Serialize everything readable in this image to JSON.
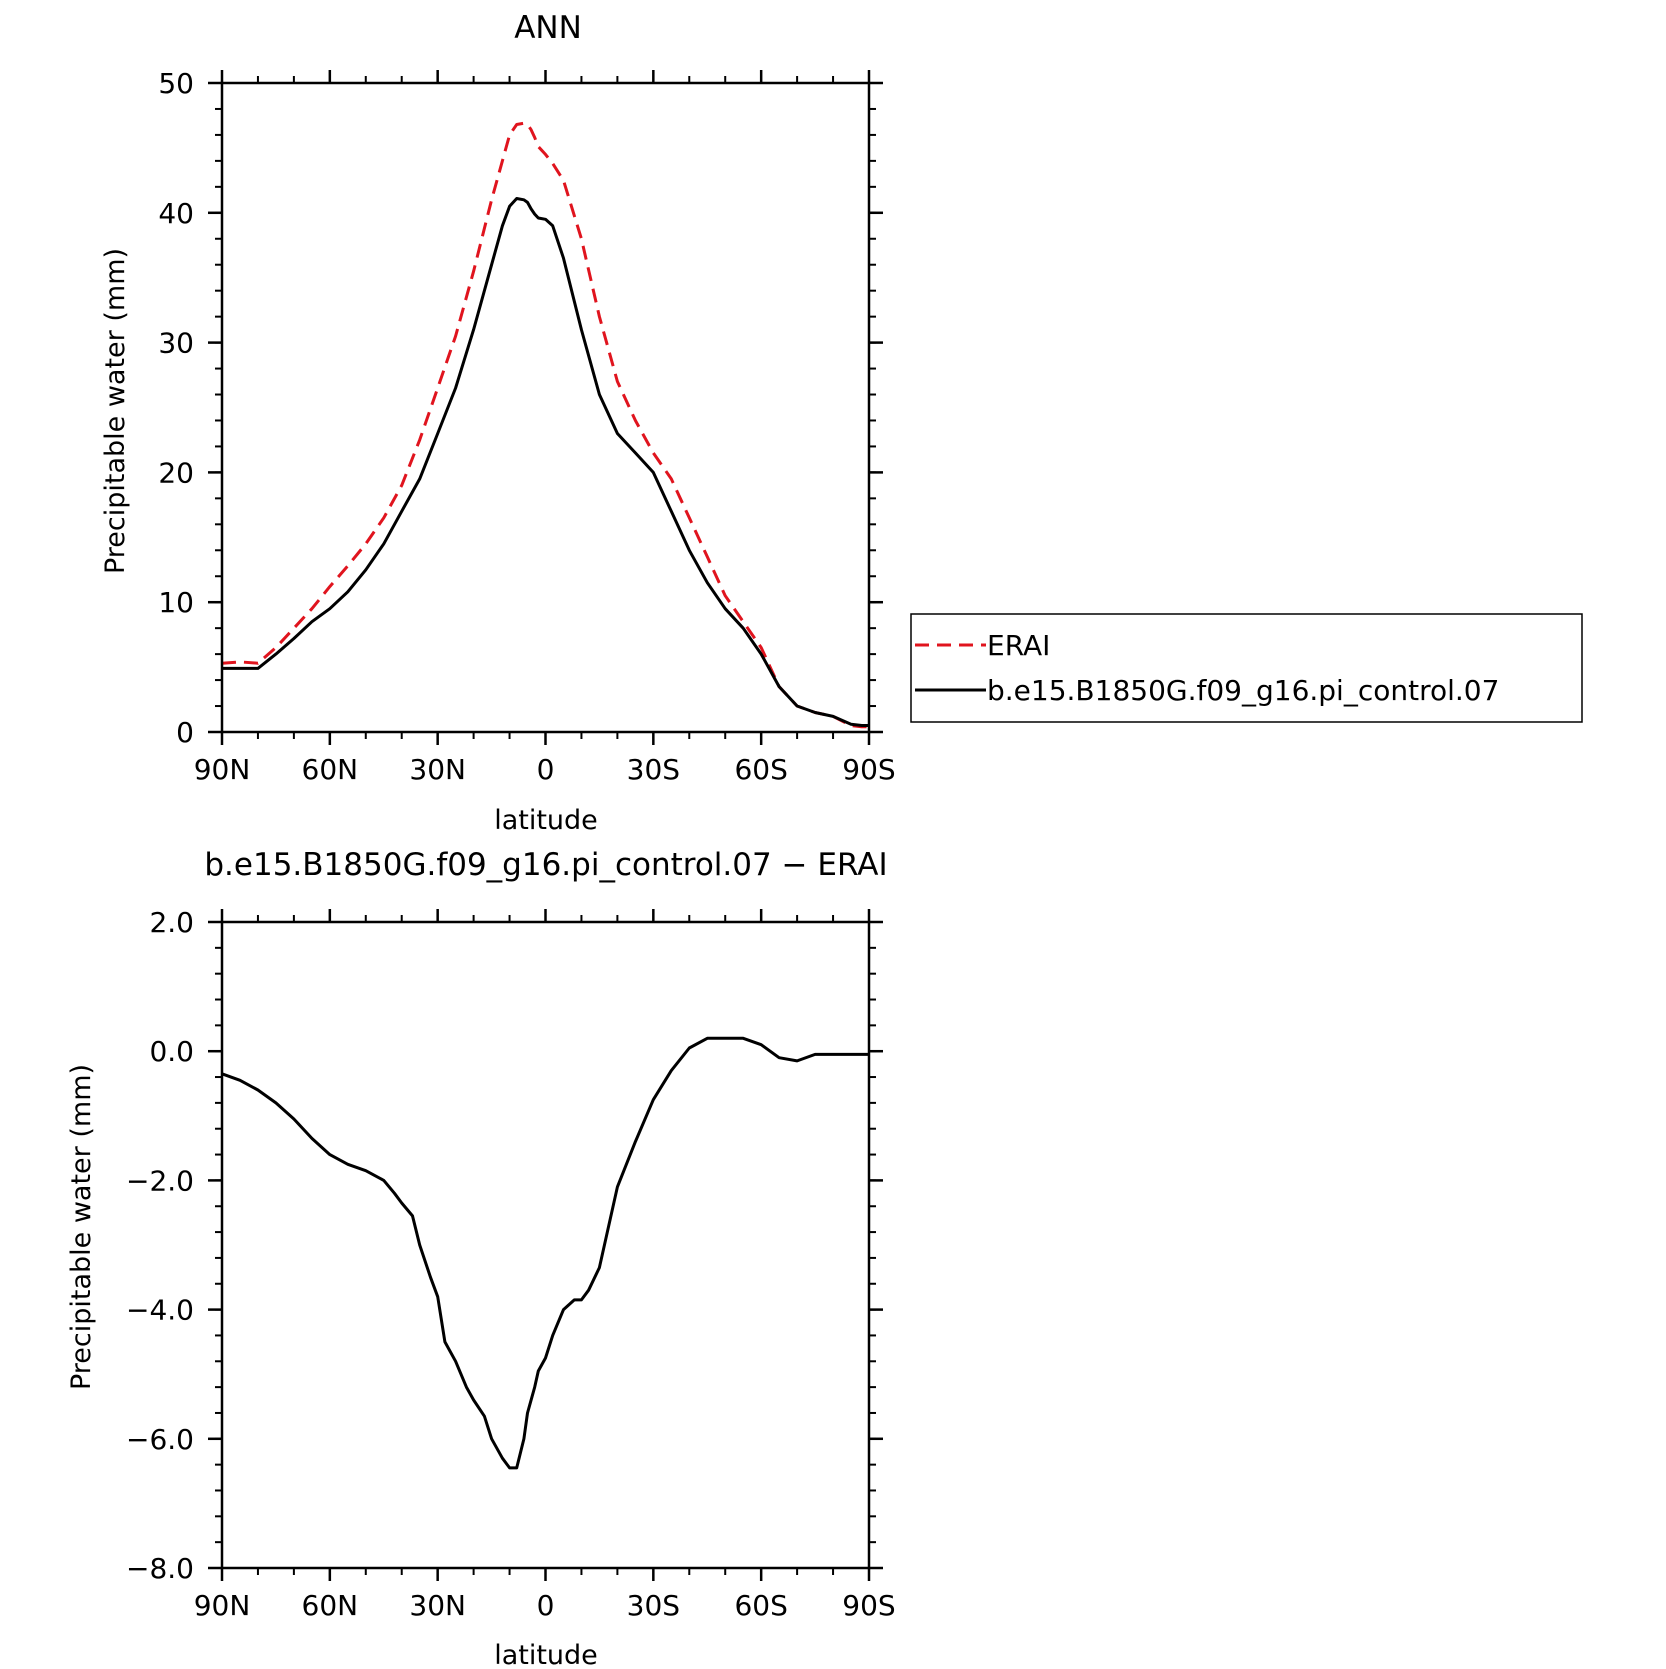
{
  "colors": {
    "erai": "#e0141e",
    "model": "#000000",
    "axis": "#000000",
    "background": "#ffffff"
  },
  "chart_data": [
    {
      "type": "line",
      "title": "ANN",
      "xlabel": "latitude",
      "ylabel": "Precipitable water (mm)",
      "xlim": [
        90,
        -90
      ],
      "ylim": [
        0,
        50
      ],
      "xticks": [
        90,
        60,
        30,
        0,
        -30,
        -60,
        -90
      ],
      "xtick_labels": [
        "90N",
        "60N",
        "30N",
        "0",
        "30S",
        "60S",
        "90S"
      ],
      "yticks": [
        0,
        10,
        20,
        30,
        40,
        50
      ],
      "ytick_labels": [
        "0",
        "10",
        "20",
        "30",
        "40",
        "50"
      ],
      "legend_position": "right",
      "legend": [
        "ERAI",
        "b.e15.B1850G.f09_g16.pi_control.07"
      ],
      "series": [
        {
          "name": "ERAI",
          "style": "dashed",
          "color": "#e0141e",
          "x": [
            90,
            85,
            80,
            75,
            70,
            65,
            60,
            55,
            50,
            45,
            40,
            35,
            30,
            25,
            20,
            15,
            12,
            10,
            8,
            6,
            5,
            4,
            3,
            2,
            0,
            -2,
            -5,
            -10,
            -15,
            -20,
            -25,
            -30,
            -35,
            -40,
            -45,
            -50,
            -55,
            -60,
            -65,
            -70,
            -75,
            -80,
            -85,
            -88,
            -90
          ],
          "y": [
            5.3,
            5.4,
            5.3,
            6.5,
            8.0,
            9.5,
            11.2,
            12.8,
            14.5,
            16.5,
            19.0,
            22.5,
            26.5,
            30.5,
            35.5,
            41.0,
            44.0,
            46.0,
            46.8,
            46.9,
            46.8,
            46.4,
            45.8,
            45.1,
            44.5,
            43.8,
            42.5,
            38.0,
            32.0,
            27.0,
            24.0,
            21.5,
            19.5,
            16.5,
            13.5,
            10.5,
            8.5,
            6.5,
            3.5,
            2.0,
            1.5,
            1.2,
            0.5,
            0.4,
            0.4
          ]
        },
        {
          "name": "b.e15.B1850G.f09_g16.pi_control.07",
          "style": "solid",
          "color": "#000000",
          "x": [
            90,
            85,
            80,
            75,
            70,
            65,
            60,
            55,
            50,
            45,
            40,
            35,
            30,
            25,
            20,
            15,
            12,
            10,
            8,
            6,
            5,
            4,
            3,
            2,
            0,
            -2,
            -5,
            -10,
            -15,
            -20,
            -25,
            -30,
            -35,
            -40,
            -45,
            -50,
            -55,
            -60,
            -65,
            -70,
            -75,
            -80,
            -85,
            -88,
            -90
          ],
          "y": [
            4.9,
            4.9,
            4.9,
            6.0,
            7.2,
            8.5,
            9.5,
            10.8,
            12.5,
            14.5,
            17.0,
            19.5,
            23.0,
            26.5,
            31.0,
            36.0,
            39.0,
            40.5,
            41.1,
            41.0,
            40.8,
            40.3,
            39.9,
            39.6,
            39.5,
            39.0,
            36.5,
            31.0,
            26.0,
            23.0,
            21.5,
            20.0,
            17.0,
            14.0,
            11.5,
            9.5,
            8.0,
            6.0,
            3.5,
            2.0,
            1.5,
            1.2,
            0.6,
            0.5,
            0.5
          ]
        }
      ]
    },
    {
      "type": "line",
      "title": "b.e15.B1850G.f09_g16.pi_control.07 − ERAI",
      "xlabel": "latitude",
      "ylabel": "Precipitable water (mm)",
      "xlim": [
        90,
        -90
      ],
      "ylim": [
        -8.0,
        2.0
      ],
      "xticks": [
        90,
        60,
        30,
        0,
        -30,
        -60,
        -90
      ],
      "xtick_labels": [
        "90N",
        "60N",
        "30N",
        "0",
        "30S",
        "60S",
        "90S"
      ],
      "yticks": [
        2.0,
        0.0,
        -2.0,
        -4.0,
        -6.0,
        -8.0
      ],
      "ytick_labels": [
        "2.0",
        "0.0",
        "−2.0",
        "−4.0",
        "−6.0",
        "−8.0"
      ],
      "series": [
        {
          "style": "solid",
          "color": "#000000",
          "x": [
            90,
            85,
            80,
            75,
            70,
            65,
            60,
            55,
            50,
            45,
            42,
            40,
            37,
            35,
            32,
            30,
            28,
            25,
            22,
            20,
            17,
            15,
            12,
            10,
            8,
            6,
            5,
            3,
            2,
            0,
            -2,
            -5,
            -8,
            -10,
            -12,
            -15,
            -18,
            -20,
            -25,
            -30,
            -35,
            -40,
            -45,
            -50,
            -55,
            -60,
            -65,
            -70,
            -75,
            -80,
            -85,
            -88,
            -90
          ],
          "y": [
            -0.35,
            -0.45,
            -0.6,
            -0.8,
            -1.05,
            -1.35,
            -1.6,
            -1.75,
            -1.85,
            -2.0,
            -2.2,
            -2.35,
            -2.55,
            -3.0,
            -3.5,
            -3.8,
            -4.5,
            -4.8,
            -5.2,
            -5.4,
            -5.65,
            -6.0,
            -6.3,
            -6.45,
            -6.45,
            -6.0,
            -5.6,
            -5.2,
            -4.95,
            -4.75,
            -4.4,
            -4.0,
            -3.85,
            -3.85,
            -3.7,
            -3.35,
            -2.6,
            -2.1,
            -1.4,
            -0.75,
            -0.3,
            0.05,
            0.2,
            0.2,
            0.2,
            0.1,
            -0.1,
            -0.15,
            -0.05,
            -0.05,
            -0.05,
            -0.05,
            -0.05
          ]
        }
      ]
    }
  ]
}
